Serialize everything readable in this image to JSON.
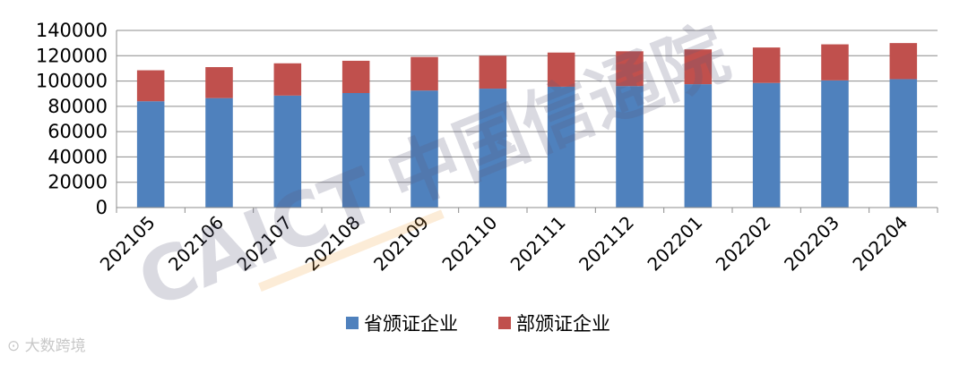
{
  "chart_data": {
    "type": "bar",
    "stacked": true,
    "categories": [
      "202105",
      "202106",
      "202107",
      "202108",
      "202109",
      "202110",
      "202111",
      "202112",
      "202201",
      "202202",
      "202203",
      "202204"
    ],
    "series": [
      {
        "name": "省颁证企业",
        "color": "#4f81bd",
        "values": [
          84000,
          86500,
          88500,
          90500,
          92500,
          94000,
          95500,
          96000,
          97500,
          98500,
          100500,
          101500
        ]
      },
      {
        "name": "部颁证企业",
        "color": "#c0504d",
        "values": [
          24500,
          24500,
          25500,
          25500,
          26500,
          26000,
          27000,
          27500,
          27500,
          28000,
          28500,
          28500
        ]
      }
    ],
    "ylim": [
      0,
      140000
    ],
    "yticks": [
      0,
      20000,
      40000,
      60000,
      80000,
      100000,
      120000,
      140000
    ],
    "grid": true,
    "legend_position": "bottom",
    "title": "",
    "xlabel": "",
    "ylabel": ""
  },
  "watermark": {
    "logo_text": "CAICT",
    "org_text": "中国信通院"
  },
  "corner_watermark": {
    "text": "大数跨境"
  }
}
